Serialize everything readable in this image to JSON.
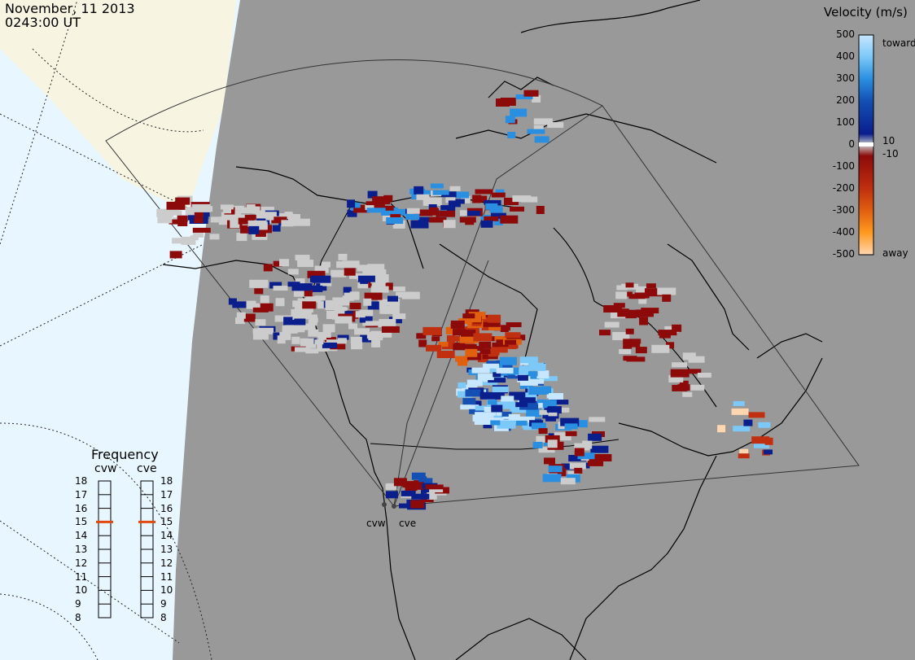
{
  "header": {
    "date": "November, 11 2013",
    "time": "0243:00 UT"
  },
  "frequency_panel": {
    "title": "Frequency",
    "radars": [
      {
        "name": "cvw",
        "current_mhz": 15
      },
      {
        "name": "cve",
        "current_mhz": 15
      }
    ],
    "ticks": [
      "18",
      "17",
      "16",
      "15",
      "14",
      "13",
      "12",
      "11",
      "10",
      "9",
      "8"
    ],
    "marker_color": "#e04a10"
  },
  "velocity_scale": {
    "title": "Velocity (m/s)",
    "ticks": [
      "500",
      "400",
      "300",
      "200",
      "100",
      "0",
      "-100",
      "-200",
      "-300",
      "-400",
      "-500"
    ],
    "label_toward": "toward",
    "label_away": "away",
    "label_pos_small": "10",
    "label_neg_small": "-10",
    "colors": {
      "toward_500": "#c7e6ff",
      "toward_400": "#7cc8f8",
      "toward_300": "#2a8fe0",
      "toward_200": "#1450b4",
      "toward_100": "#0a1e8c",
      "ground": "#cccccc",
      "away_100": "#8c0a0a",
      "away_200": "#c03010",
      "away_300": "#e06010",
      "away_400": "#ff9a20",
      "away_500": "#ffd6b0"
    }
  },
  "map": {
    "sites": [
      {
        "code": "cvw"
      },
      {
        "code": "cve"
      }
    ],
    "background_ocean": "#e8f6ff",
    "background_land_day": "#f7f5e2",
    "night_shade": "#999999"
  }
}
